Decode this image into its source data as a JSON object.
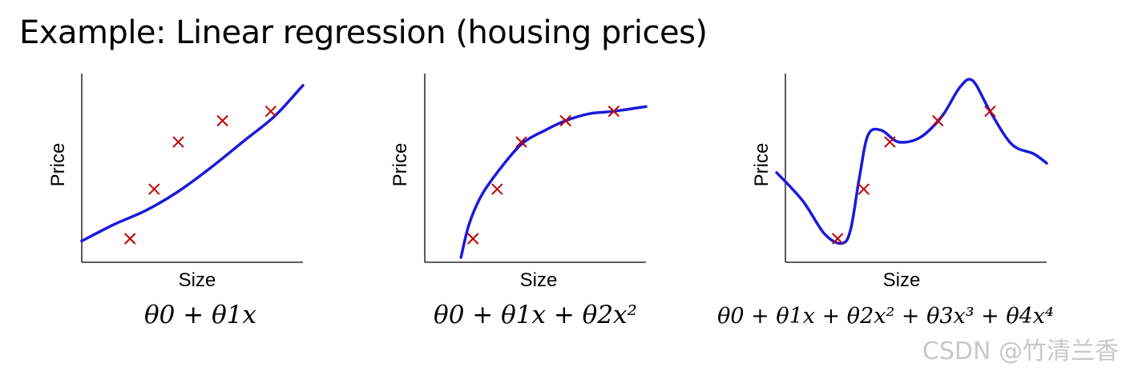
{
  "title": "Example: Linear regression (housing prices)",
  "watermark": "CSDN @竹清兰香",
  "colors": {
    "points": "#c00000",
    "curve": "#1a1adb",
    "axes": "#000000",
    "text": "#000000"
  },
  "chart_data": [
    {
      "type": "scatter",
      "xlabel": "Size",
      "ylabel": "Price",
      "formula": "θ0 + θ1x",
      "points": [
        [
          1.2,
          1.0
        ],
        [
          1.8,
          3.1
        ],
        [
          2.4,
          5.1
        ],
        [
          3.5,
          6.0
        ],
        [
          4.7,
          6.4
        ]
      ],
      "fit": [
        [
          0,
          0.9
        ],
        [
          0.8,
          1.6
        ],
        [
          1.6,
          2.2
        ],
        [
          2.4,
          3.0
        ],
        [
          3.2,
          4.0
        ],
        [
          4.0,
          5.1
        ],
        [
          4.8,
          6.2
        ],
        [
          5.5,
          7.5
        ]
      ],
      "xlim": [
        0,
        5.5
      ],
      "ylim": [
        0,
        8
      ]
    },
    {
      "type": "scatter",
      "xlabel": "Size",
      "ylabel": "Price",
      "formula": "θ0 + θ1x + θ2x²",
      "points": [
        [
          1.2,
          1.0
        ],
        [
          1.8,
          3.1
        ],
        [
          2.4,
          5.1
        ],
        [
          3.5,
          6.0
        ],
        [
          4.7,
          6.4
        ]
      ],
      "fit": [
        [
          0.9,
          0.2
        ],
        [
          1.1,
          1.6
        ],
        [
          1.4,
          2.8
        ],
        [
          1.8,
          3.8
        ],
        [
          2.4,
          5.0
        ],
        [
          3.0,
          5.6
        ],
        [
          3.5,
          6.0
        ],
        [
          4.1,
          6.3
        ],
        [
          4.7,
          6.4
        ],
        [
          5.5,
          6.6
        ]
      ],
      "xlim": [
        0,
        5.5
      ],
      "ylim": [
        0,
        8
      ]
    },
    {
      "type": "scatter",
      "xlabel": "Size",
      "ylabel": "Price",
      "formula": "θ0 + θ1x + θ2x² + θ3x³ + θ4x⁴",
      "points": [
        [
          1.2,
          1.0
        ],
        [
          1.8,
          3.1
        ],
        [
          2.4,
          5.1
        ],
        [
          3.5,
          6.0
        ],
        [
          4.7,
          6.4
        ]
      ],
      "fit": [
        [
          -0.2,
          3.8
        ],
        [
          0.4,
          2.6
        ],
        [
          0.9,
          1.2
        ],
        [
          1.3,
          0.8
        ],
        [
          1.5,
          1.4
        ],
        [
          1.7,
          3.6
        ],
        [
          1.9,
          5.4
        ],
        [
          2.2,
          5.6
        ],
        [
          2.6,
          5.1
        ],
        [
          3.1,
          5.3
        ],
        [
          3.6,
          6.2
        ],
        [
          4.0,
          7.4
        ],
        [
          4.3,
          7.7
        ],
        [
          4.7,
          6.4
        ],
        [
          5.2,
          5.0
        ],
        [
          5.7,
          4.6
        ],
        [
          6.0,
          4.2
        ]
      ],
      "xlim": [
        0,
        6
      ],
      "ylim": [
        0,
        8
      ]
    }
  ]
}
